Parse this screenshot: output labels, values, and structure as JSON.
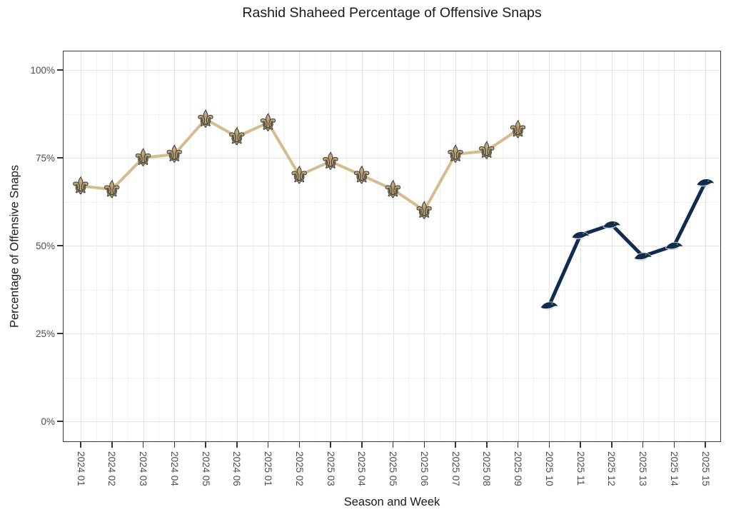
{
  "figure": {
    "title": "Rashid Shaheed Percentage of Offensive Snaps"
  },
  "chart_data": {
    "type": "line",
    "title": "Rashid Shaheed Percentage of Offensive Snaps",
    "xlabel": "Season and Week",
    "ylabel": "Percentage of Offensive Snaps",
    "ylim": [
      0,
      100
    ],
    "y_ticks": {
      "values": [
        0,
        25,
        50,
        75,
        100
      ],
      "labels": [
        "0%",
        "25%",
        "50%",
        "75%",
        "100%"
      ]
    },
    "grid": {
      "major": true,
      "minor": true
    },
    "legend": "none",
    "categories": [
      "2024 01",
      "2024 02",
      "2024 03",
      "2024 04",
      "2024 05",
      "2024 06",
      "2025 01",
      "2025 02",
      "2025 03",
      "2025 04",
      "2025 05",
      "2025 06",
      "2025 07",
      "2025 08",
      "2025 09",
      "2025 10",
      "2025 11",
      "2025 12",
      "2025 13",
      "2025 14",
      "2025 15"
    ],
    "series": [
      {
        "name": "New Orleans Saints",
        "marker": "saints-fleur-de-lis",
        "line_color": "#d3bc8d",
        "marker_fill": "#c0a876",
        "marker_outline": "#46443c",
        "values": [
          67,
          66,
          75,
          76,
          86,
          81,
          85,
          70,
          74,
          70,
          66,
          60,
          76,
          77,
          83,
          null,
          null,
          null,
          null,
          null,
          null
        ]
      },
      {
        "name": "Seattle Seahawks",
        "marker": "seahawks-logo",
        "line_color": "#0f2c4c",
        "marker_fill": "#0f2c4c",
        "marker_accent": "#aab5bf",
        "marker_eye": "#69be28",
        "values": [
          null,
          null,
          null,
          null,
          null,
          null,
          null,
          null,
          null,
          null,
          null,
          null,
          null,
          null,
          null,
          33,
          53,
          56,
          47,
          50,
          68
        ]
      }
    ]
  }
}
